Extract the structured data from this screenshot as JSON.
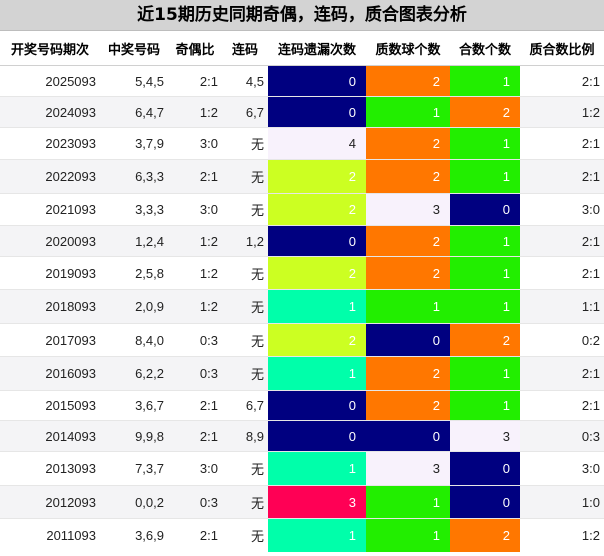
{
  "title": "近15期历史同期奇偶，连码，质合图表分析",
  "headers": [
    "开奖号码期次",
    "中奖号码",
    "奇偶比",
    "连码",
    "连码遗漏次数",
    "质数球个数",
    "合数个数",
    "质合数比例"
  ],
  "palette": {
    "miss0": "#000080",
    "miss1": "#00ffaa",
    "miss2": "#ccff22",
    "miss3": "#ff0055",
    "miss4": "#f8f2fc",
    "count0": "#000080",
    "count1": "#22ee00",
    "count2": "#ff7700",
    "count3": "#f8f2fc",
    "light_text": "#ffffff",
    "dark_text": "#222222"
  },
  "rows": [
    {
      "issue": "2025093",
      "number": "5,4,5",
      "odd_even": "2:1",
      "consecutive": "4,5",
      "miss": "0",
      "prime": "2",
      "composite": "1",
      "ratio": "2:1"
    },
    {
      "issue": "2024093",
      "number": "6,4,7",
      "odd_even": "1:2",
      "consecutive": "6,7",
      "miss": "0",
      "prime": "1",
      "composite": "2",
      "ratio": "1:2"
    },
    {
      "issue": "2023093",
      "number": "3,7,9",
      "odd_even": "3:0",
      "consecutive": "无",
      "miss": "4",
      "prime": "2",
      "composite": "1",
      "ratio": "2:1"
    },
    {
      "issue": "2022093",
      "number": "6,3,3",
      "odd_even": "2:1",
      "consecutive": "无",
      "miss": "2",
      "prime": "2",
      "composite": "1",
      "ratio": "2:1"
    },
    {
      "issue": "2021093",
      "number": "3,3,3",
      "odd_even": "3:0",
      "consecutive": "无",
      "miss": "2",
      "prime": "3",
      "composite": "0",
      "ratio": "3:0"
    },
    {
      "issue": "2020093",
      "number": "1,2,4",
      "odd_even": "1:2",
      "consecutive": "1,2",
      "miss": "0",
      "prime": "2",
      "composite": "1",
      "ratio": "2:1"
    },
    {
      "issue": "2019093",
      "number": "2,5,8",
      "odd_even": "1:2",
      "consecutive": "无",
      "miss": "2",
      "prime": "2",
      "composite": "1",
      "ratio": "2:1"
    },
    {
      "issue": "2018093",
      "number": "2,0,9",
      "odd_even": "1:2",
      "consecutive": "无",
      "miss": "1",
      "prime": "1",
      "composite": "1",
      "ratio": "1:1"
    },
    {
      "issue": "2017093",
      "number": "8,4,0",
      "odd_even": "0:3",
      "consecutive": "无",
      "miss": "2",
      "prime": "0",
      "composite": "2",
      "ratio": "0:2"
    },
    {
      "issue": "2016093",
      "number": "6,2,2",
      "odd_even": "0:3",
      "consecutive": "无",
      "miss": "1",
      "prime": "2",
      "composite": "1",
      "ratio": "2:1"
    },
    {
      "issue": "2015093",
      "number": "3,6,7",
      "odd_even": "2:1",
      "consecutive": "6,7",
      "miss": "0",
      "prime": "2",
      "composite": "1",
      "ratio": "2:1"
    },
    {
      "issue": "2014093",
      "number": "9,9,8",
      "odd_even": "2:1",
      "consecutive": "8,9",
      "miss": "0",
      "prime": "0",
      "composite": "3",
      "ratio": "0:3"
    },
    {
      "issue": "2013093",
      "number": "7,3,7",
      "odd_even": "3:0",
      "consecutive": "无",
      "miss": "1",
      "prime": "3",
      "composite": "0",
      "ratio": "3:0"
    },
    {
      "issue": "2012093",
      "number": "0,0,2",
      "odd_even": "0:3",
      "consecutive": "无",
      "miss": "3",
      "prime": "1",
      "composite": "0",
      "ratio": "1:0"
    },
    {
      "issue": "2011093",
      "number": "3,6,9",
      "odd_even": "2:1",
      "consecutive": "无",
      "miss": "1",
      "prime": "1",
      "composite": "2",
      "ratio": "1:2"
    }
  ]
}
